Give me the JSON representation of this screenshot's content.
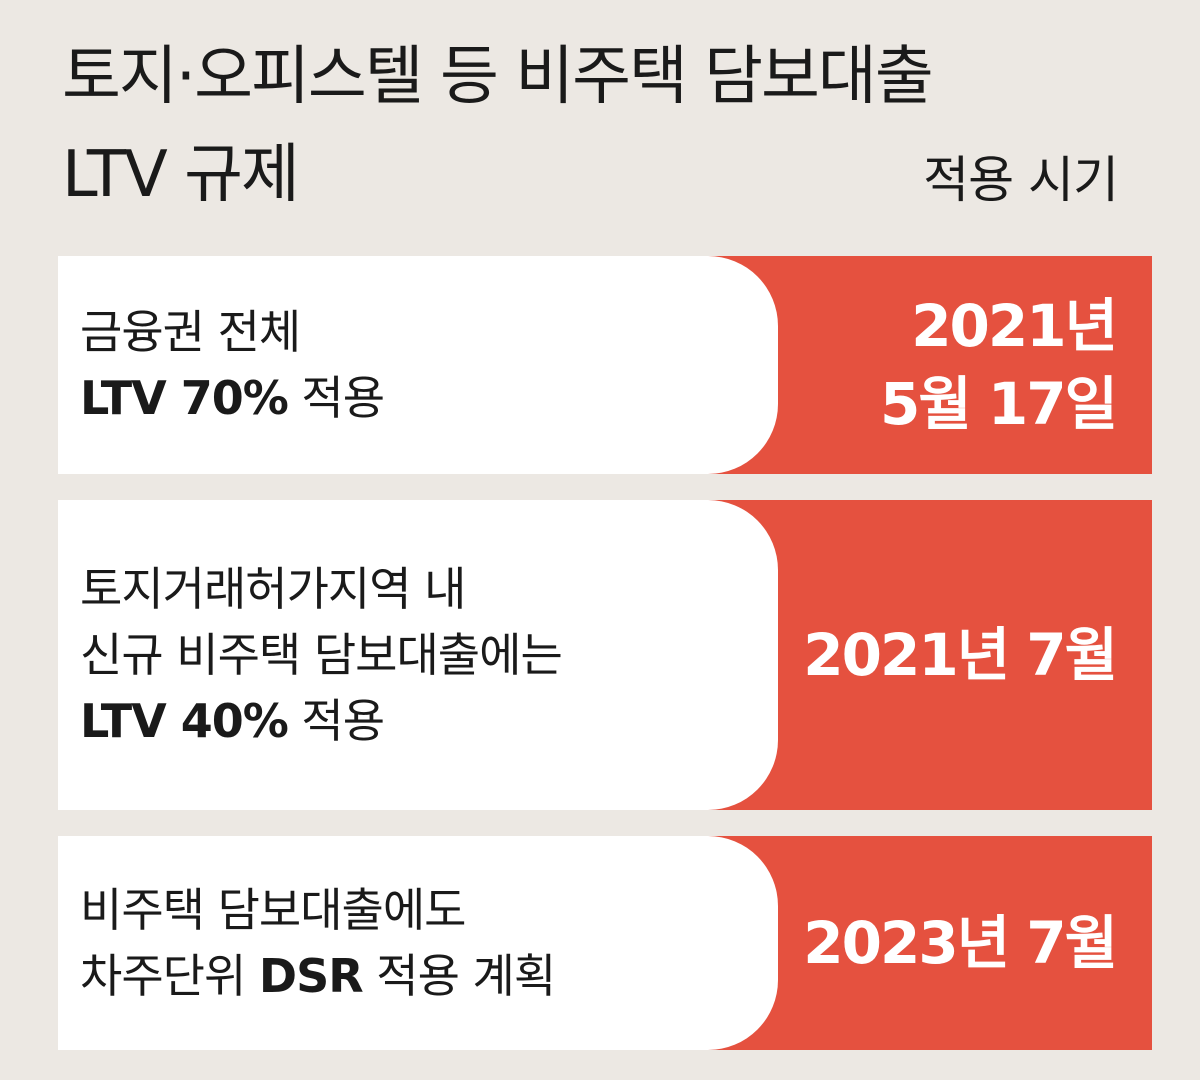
{
  "title": {
    "line1": "토지·오피스텔 등 비주택 담보대출",
    "line2": "LTV 규제"
  },
  "column_header": "적용 시기",
  "rows": [
    {
      "desc_lines": [
        {
          "normal": "금융권 전체",
          "bold": ""
        },
        {
          "bold": "LTV 70%",
          "normal": " 적용"
        }
      ],
      "date_lines": [
        "2021년",
        "5월 17일"
      ]
    },
    {
      "desc_lines": [
        {
          "normal": "토지거래허가지역 내",
          "bold": ""
        },
        {
          "normal": "신규 비주택 담보대출에는",
          "bold": ""
        },
        {
          "bold": "LTV 40%",
          "normal": " 적용"
        }
      ],
      "date_lines": [
        "2021년 7월"
      ]
    },
    {
      "desc_lines": [
        {
          "normal": "비주택 담보대출에도",
          "bold": ""
        },
        {
          "pre": "차주단위 ",
          "bold": "DSR",
          "normal": " 적용 계획"
        }
      ],
      "date_lines": [
        "2023년 7월"
      ]
    }
  ],
  "colors": {
    "accent": "#e5513f",
    "background": "#ece8e3",
    "panel": "#ffffff"
  }
}
